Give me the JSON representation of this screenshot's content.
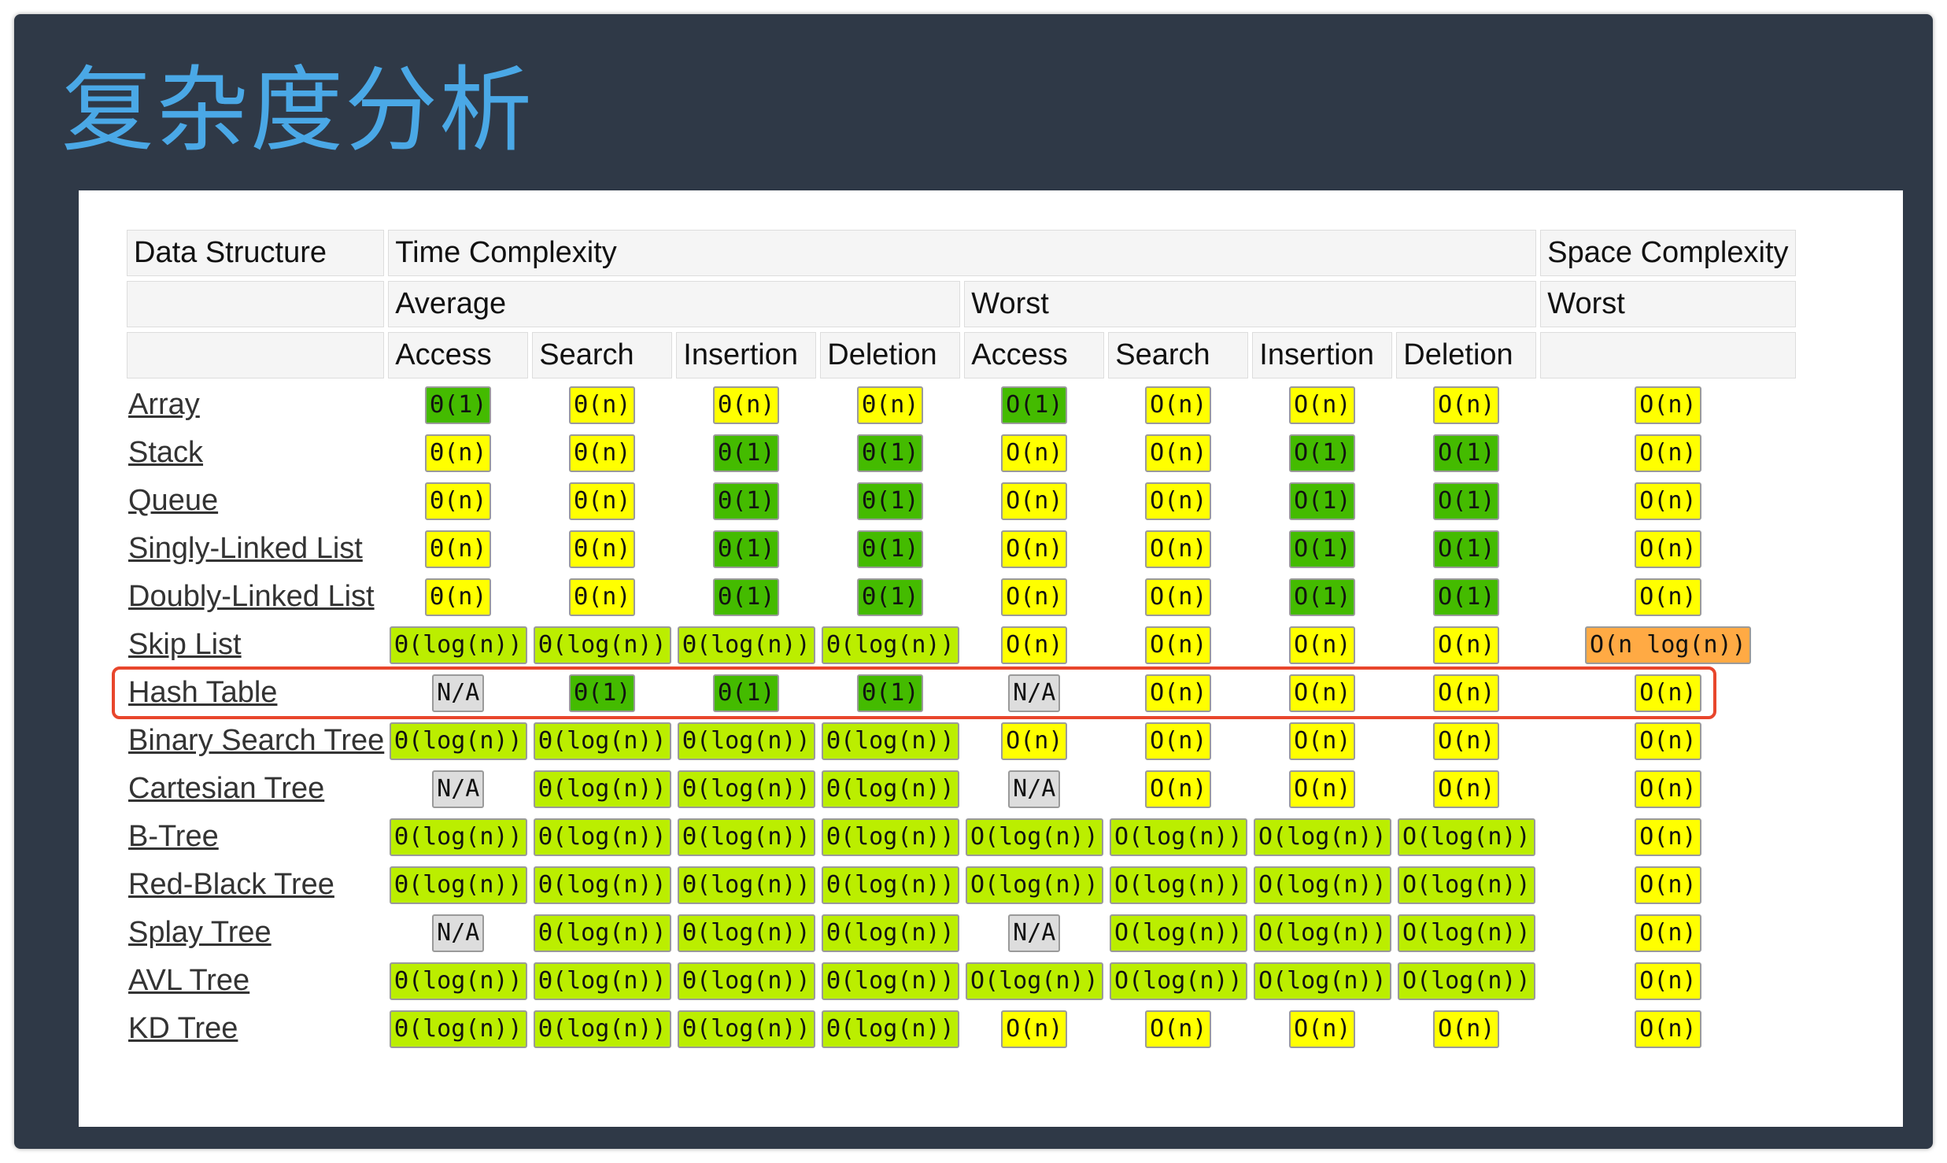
{
  "slide": {
    "title": "复杂度分析"
  },
  "header": {
    "row1": [
      "Data Structure",
      "Time Complexity",
      "Space Complexity"
    ],
    "row2": [
      "",
      "Average",
      "Worst",
      "Worst"
    ],
    "row3": [
      "",
      "Access",
      "Search",
      "Insertion",
      "Deletion",
      "Access",
      "Search",
      "Insertion",
      "Deletion",
      ""
    ]
  },
  "colors": {
    "green": "#44bb00",
    "yellow": "#ffff00",
    "lime": "#bbee00",
    "gray": "#dddddd",
    "orange": "#ffaa44",
    "highlight": "#e8462c"
  },
  "highlighted_row": "Hash Table",
  "rows": [
    {
      "name": "Array",
      "cells": [
        [
          "Θ(1)",
          "green"
        ],
        [
          "Θ(n)",
          "yellow"
        ],
        [
          "Θ(n)",
          "yellow"
        ],
        [
          "Θ(n)",
          "yellow"
        ],
        [
          "O(1)",
          "green"
        ],
        [
          "O(n)",
          "yellow"
        ],
        [
          "O(n)",
          "yellow"
        ],
        [
          "O(n)",
          "yellow"
        ],
        [
          "O(n)",
          "yellow"
        ]
      ]
    },
    {
      "name": "Stack",
      "cells": [
        [
          "Θ(n)",
          "yellow"
        ],
        [
          "Θ(n)",
          "yellow"
        ],
        [
          "Θ(1)",
          "green"
        ],
        [
          "Θ(1)",
          "green"
        ],
        [
          "O(n)",
          "yellow"
        ],
        [
          "O(n)",
          "yellow"
        ],
        [
          "O(1)",
          "green"
        ],
        [
          "O(1)",
          "green"
        ],
        [
          "O(n)",
          "yellow"
        ]
      ]
    },
    {
      "name": "Queue",
      "cells": [
        [
          "Θ(n)",
          "yellow"
        ],
        [
          "Θ(n)",
          "yellow"
        ],
        [
          "Θ(1)",
          "green"
        ],
        [
          "Θ(1)",
          "green"
        ],
        [
          "O(n)",
          "yellow"
        ],
        [
          "O(n)",
          "yellow"
        ],
        [
          "O(1)",
          "green"
        ],
        [
          "O(1)",
          "green"
        ],
        [
          "O(n)",
          "yellow"
        ]
      ]
    },
    {
      "name": "Singly-Linked List",
      "cells": [
        [
          "Θ(n)",
          "yellow"
        ],
        [
          "Θ(n)",
          "yellow"
        ],
        [
          "Θ(1)",
          "green"
        ],
        [
          "Θ(1)",
          "green"
        ],
        [
          "O(n)",
          "yellow"
        ],
        [
          "O(n)",
          "yellow"
        ],
        [
          "O(1)",
          "green"
        ],
        [
          "O(1)",
          "green"
        ],
        [
          "O(n)",
          "yellow"
        ]
      ]
    },
    {
      "name": "Doubly-Linked List",
      "cells": [
        [
          "Θ(n)",
          "yellow"
        ],
        [
          "Θ(n)",
          "yellow"
        ],
        [
          "Θ(1)",
          "green"
        ],
        [
          "Θ(1)",
          "green"
        ],
        [
          "O(n)",
          "yellow"
        ],
        [
          "O(n)",
          "yellow"
        ],
        [
          "O(1)",
          "green"
        ],
        [
          "O(1)",
          "green"
        ],
        [
          "O(n)",
          "yellow"
        ]
      ]
    },
    {
      "name": "Skip List",
      "cells": [
        [
          "Θ(log(n))",
          "lime"
        ],
        [
          "Θ(log(n))",
          "lime"
        ],
        [
          "Θ(log(n))",
          "lime"
        ],
        [
          "Θ(log(n))",
          "lime"
        ],
        [
          "O(n)",
          "yellow"
        ],
        [
          "O(n)",
          "yellow"
        ],
        [
          "O(n)",
          "yellow"
        ],
        [
          "O(n)",
          "yellow"
        ],
        [
          "O(n log(n))",
          "orange"
        ]
      ]
    },
    {
      "name": "Hash Table",
      "cells": [
        [
          "N/A",
          "gray"
        ],
        [
          "Θ(1)",
          "green"
        ],
        [
          "Θ(1)",
          "green"
        ],
        [
          "Θ(1)",
          "green"
        ],
        [
          "N/A",
          "gray"
        ],
        [
          "O(n)",
          "yellow"
        ],
        [
          "O(n)",
          "yellow"
        ],
        [
          "O(n)",
          "yellow"
        ],
        [
          "O(n)",
          "yellow"
        ]
      ]
    },
    {
      "name": "Binary Search Tree",
      "cells": [
        [
          "Θ(log(n))",
          "lime"
        ],
        [
          "Θ(log(n))",
          "lime"
        ],
        [
          "Θ(log(n))",
          "lime"
        ],
        [
          "Θ(log(n))",
          "lime"
        ],
        [
          "O(n)",
          "yellow"
        ],
        [
          "O(n)",
          "yellow"
        ],
        [
          "O(n)",
          "yellow"
        ],
        [
          "O(n)",
          "yellow"
        ],
        [
          "O(n)",
          "yellow"
        ]
      ]
    },
    {
      "name": "Cartesian Tree",
      "cells": [
        [
          "N/A",
          "gray"
        ],
        [
          "Θ(log(n))",
          "lime"
        ],
        [
          "Θ(log(n))",
          "lime"
        ],
        [
          "Θ(log(n))",
          "lime"
        ],
        [
          "N/A",
          "gray"
        ],
        [
          "O(n)",
          "yellow"
        ],
        [
          "O(n)",
          "yellow"
        ],
        [
          "O(n)",
          "yellow"
        ],
        [
          "O(n)",
          "yellow"
        ]
      ]
    },
    {
      "name": "B-Tree",
      "cells": [
        [
          "Θ(log(n))",
          "lime"
        ],
        [
          "Θ(log(n))",
          "lime"
        ],
        [
          "Θ(log(n))",
          "lime"
        ],
        [
          "Θ(log(n))",
          "lime"
        ],
        [
          "O(log(n))",
          "lime"
        ],
        [
          "O(log(n))",
          "lime"
        ],
        [
          "O(log(n))",
          "lime"
        ],
        [
          "O(log(n))",
          "lime"
        ],
        [
          "O(n)",
          "yellow"
        ]
      ]
    },
    {
      "name": "Red-Black Tree",
      "cells": [
        [
          "Θ(log(n))",
          "lime"
        ],
        [
          "Θ(log(n))",
          "lime"
        ],
        [
          "Θ(log(n))",
          "lime"
        ],
        [
          "Θ(log(n))",
          "lime"
        ],
        [
          "O(log(n))",
          "lime"
        ],
        [
          "O(log(n))",
          "lime"
        ],
        [
          "O(log(n))",
          "lime"
        ],
        [
          "O(log(n))",
          "lime"
        ],
        [
          "O(n)",
          "yellow"
        ]
      ]
    },
    {
      "name": "Splay Tree",
      "cells": [
        [
          "N/A",
          "gray"
        ],
        [
          "Θ(log(n))",
          "lime"
        ],
        [
          "Θ(log(n))",
          "lime"
        ],
        [
          "Θ(log(n))",
          "lime"
        ],
        [
          "N/A",
          "gray"
        ],
        [
          "O(log(n))",
          "lime"
        ],
        [
          "O(log(n))",
          "lime"
        ],
        [
          "O(log(n))",
          "lime"
        ],
        [
          "O(n)",
          "yellow"
        ]
      ]
    },
    {
      "name": "AVL Tree",
      "cells": [
        [
          "Θ(log(n))",
          "lime"
        ],
        [
          "Θ(log(n))",
          "lime"
        ],
        [
          "Θ(log(n))",
          "lime"
        ],
        [
          "Θ(log(n))",
          "lime"
        ],
        [
          "O(log(n))",
          "lime"
        ],
        [
          "O(log(n))",
          "lime"
        ],
        [
          "O(log(n))",
          "lime"
        ],
        [
          "O(log(n))",
          "lime"
        ],
        [
          "O(n)",
          "yellow"
        ]
      ]
    },
    {
      "name": "KD Tree",
      "cells": [
        [
          "Θ(log(n))",
          "lime"
        ],
        [
          "Θ(log(n))",
          "lime"
        ],
        [
          "Θ(log(n))",
          "lime"
        ],
        [
          "Θ(log(n))",
          "lime"
        ],
        [
          "O(n)",
          "yellow"
        ],
        [
          "O(n)",
          "yellow"
        ],
        [
          "O(n)",
          "yellow"
        ],
        [
          "O(n)",
          "yellow"
        ],
        [
          "O(n)",
          "yellow"
        ]
      ]
    }
  ]
}
